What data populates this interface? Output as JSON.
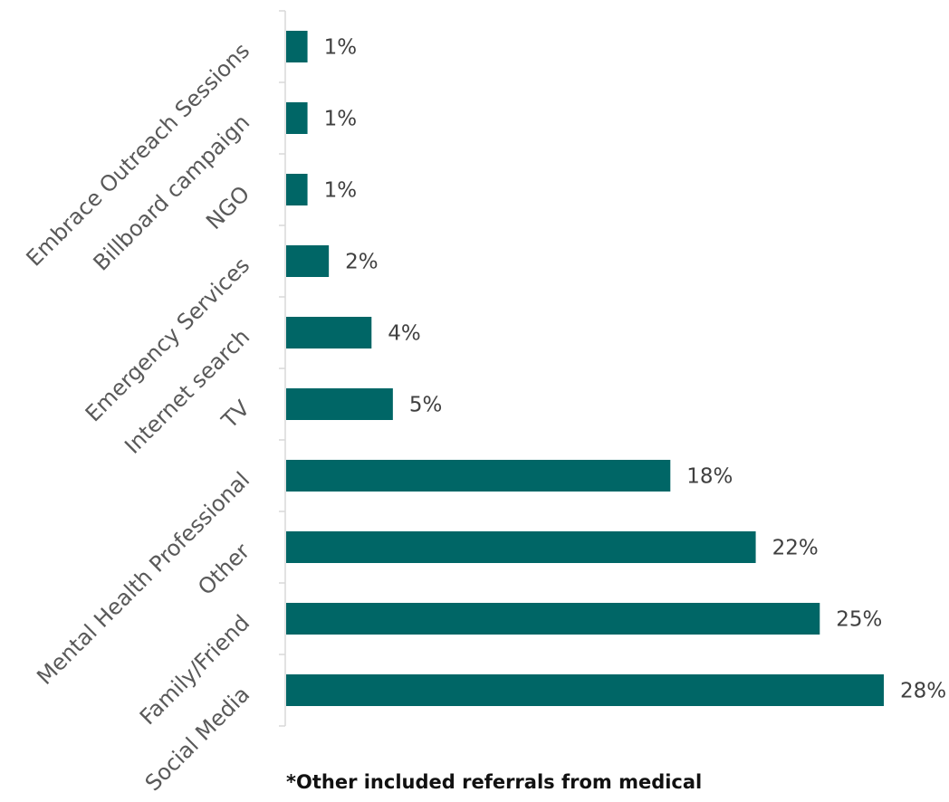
{
  "chart_data": {
    "type": "bar",
    "orientation": "horizontal",
    "categories": [
      "Embrace Outreach Sessions",
      "Billboard campaign",
      "NGO",
      "Emergency Services",
      "Internet search",
      "TV",
      "Mental Health Professional",
      "Other",
      "Family/Friend",
      "Social Media"
    ],
    "values": [
      1,
      1,
      1,
      2,
      4,
      5,
      18,
      22,
      25,
      28
    ],
    "data_labels": [
      "1%",
      "1%",
      "1%",
      "2%",
      "4%",
      "5%",
      "18%",
      "22%",
      "25%",
      "28%"
    ],
    "unit": "%",
    "xlim": [
      0,
      28
    ],
    "grid": false,
    "legend": "none",
    "bar_color": "#006666",
    "title": "",
    "xlabel": "",
    "ylabel": ""
  },
  "footnote": "*Other included referrals from medical professionals"
}
